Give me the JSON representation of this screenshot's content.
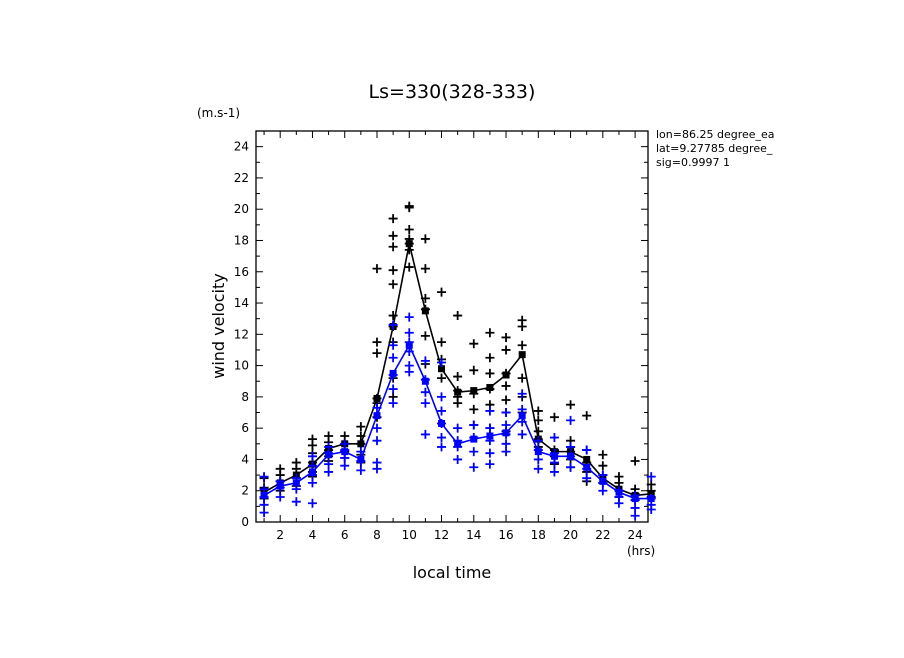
{
  "chart_data": {
    "type": "scatter",
    "title": "Ls=330(328-333)",
    "xlabel": "local time",
    "x_unit": "(hrs)",
    "ylabel": "wind velocity",
    "y_unit": "(m.s-1)",
    "xlim": [
      0.5,
      24.8
    ],
    "ylim": [
      0,
      25
    ],
    "xticks": [
      2,
      4,
      6,
      8,
      10,
      12,
      14,
      16,
      18,
      20,
      22,
      24
    ],
    "yticks": [
      0,
      2,
      4,
      6,
      8,
      10,
      12,
      14,
      16,
      18,
      20,
      22,
      24
    ],
    "legend": "top-right",
    "annotations": [
      "lon=86.25 degree_ea",
      "lat=9.27785 degree_",
      "sig=0.9997 1"
    ],
    "series": [
      {
        "color": "#000000",
        "mean": {
          "x": [
            1,
            2,
            3,
            4,
            5,
            6,
            7,
            8,
            9,
            10,
            11,
            12,
            13,
            14,
            15,
            16,
            17,
            18,
            19,
            20,
            21,
            22,
            23,
            24,
            25
          ],
          "y": [
            1.9,
            2.5,
            3.0,
            3.7,
            4.7,
            5.0,
            5.0,
            7.9,
            12.5,
            17.8,
            13.5,
            9.8,
            8.3,
            8.4,
            8.6,
            9.4,
            10.7,
            5.3,
            4.5,
            4.5,
            4.0,
            2.8,
            2.1,
            1.7,
            1.8
          ]
        },
        "samples": [
          [
            1,
            1.5
          ],
          [
            1,
            2.2
          ],
          [
            1,
            2.8
          ],
          [
            2,
            2.0
          ],
          [
            2,
            2.6
          ],
          [
            2,
            3.0
          ],
          [
            2,
            3.4
          ],
          [
            3,
            2.8
          ],
          [
            3,
            3.4
          ],
          [
            3,
            3.8
          ],
          [
            3,
            2.3
          ],
          [
            4,
            3.2
          ],
          [
            4,
            3.8
          ],
          [
            4,
            4.4
          ],
          [
            4,
            4.9
          ],
          [
            4,
            5.3
          ],
          [
            4,
            2.9
          ],
          [
            5,
            4.2
          ],
          [
            5,
            4.6
          ],
          [
            5,
            5.1
          ],
          [
            5,
            5.5
          ],
          [
            5,
            3.9
          ],
          [
            6,
            4.5
          ],
          [
            6,
            5.0
          ],
          [
            6,
            5.5
          ],
          [
            6,
            4.1
          ],
          [
            7,
            4.3
          ],
          [
            7,
            5.0
          ],
          [
            7,
            5.5
          ],
          [
            7,
            6.1
          ],
          [
            7,
            3.8
          ],
          [
            8,
            6.7
          ],
          [
            8,
            7.9
          ],
          [
            8,
            10.8
          ],
          [
            8,
            11.5
          ],
          [
            8,
            16.2
          ],
          [
            8,
            7.6
          ],
          [
            9,
            8.0
          ],
          [
            9,
            9.2
          ],
          [
            9,
            11.5
          ],
          [
            9,
            12.5
          ],
          [
            9,
            13.2
          ],
          [
            9,
            15.2
          ],
          [
            9,
            16.1
          ],
          [
            9,
            17.6
          ],
          [
            9,
            18.3
          ],
          [
            9,
            19.4
          ],
          [
            10,
            16.3
          ],
          [
            10,
            17.4
          ],
          [
            10,
            17.8
          ],
          [
            10,
            18.1
          ],
          [
            10,
            18.7
          ],
          [
            10,
            20.1
          ],
          [
            10,
            20.2
          ],
          [
            11,
            10.1
          ],
          [
            11,
            11.9
          ],
          [
            11,
            13.6
          ],
          [
            11,
            14.3
          ],
          [
            11,
            16.2
          ],
          [
            11,
            18.1
          ],
          [
            12,
            9.2
          ],
          [
            12,
            10.4
          ],
          [
            12,
            11.5
          ],
          [
            12,
            14.7
          ],
          [
            13,
            7.6
          ],
          [
            13,
            8.0
          ],
          [
            13,
            8.4
          ],
          [
            13,
            9.3
          ],
          [
            13,
            13.2
          ],
          [
            14,
            6.2
          ],
          [
            14,
            7.2
          ],
          [
            14,
            8.2
          ],
          [
            14,
            9.7
          ],
          [
            14,
            11.4
          ],
          [
            15,
            6.0
          ],
          [
            15,
            7.5
          ],
          [
            15,
            8.5
          ],
          [
            15,
            9.5
          ],
          [
            15,
            10.5
          ],
          [
            15,
            12.1
          ],
          [
            16,
            5.8
          ],
          [
            16,
            7.0
          ],
          [
            16,
            7.8
          ],
          [
            16,
            8.7
          ],
          [
            16,
            9.5
          ],
          [
            16,
            11.0
          ],
          [
            16,
            11.8
          ],
          [
            17,
            7.0
          ],
          [
            17,
            8.0
          ],
          [
            17,
            9.2
          ],
          [
            17,
            11.3
          ],
          [
            17,
            12.5
          ],
          [
            17,
            12.9
          ],
          [
            18,
            4.8
          ],
          [
            18,
            5.3
          ],
          [
            18,
            5.8
          ],
          [
            18,
            6.5
          ],
          [
            18,
            7.1
          ],
          [
            19,
            3.7
          ],
          [
            19,
            4.2
          ],
          [
            19,
            4.6
          ],
          [
            19,
            6.7
          ],
          [
            20,
            4.0
          ],
          [
            20,
            4.5
          ],
          [
            20,
            4.8
          ],
          [
            20,
            5.2
          ],
          [
            20,
            7.5
          ],
          [
            20,
            3.5
          ],
          [
            21,
            2.6
          ],
          [
            21,
            3.2
          ],
          [
            21,
            3.8
          ],
          [
            21,
            4.6
          ],
          [
            21,
            6.8
          ],
          [
            22,
            2.5
          ],
          [
            22,
            3.0
          ],
          [
            22,
            3.6
          ],
          [
            22,
            4.3
          ],
          [
            23,
            1.6
          ],
          [
            23,
            2.0
          ],
          [
            23,
            2.5
          ],
          [
            23,
            2.9
          ],
          [
            24,
            1.4
          ],
          [
            24,
            1.8
          ],
          [
            24,
            2.1
          ],
          [
            24,
            3.9
          ],
          [
            25,
            1.6
          ],
          [
            25,
            2.0
          ],
          [
            25,
            2.4
          ]
        ]
      },
      {
        "color": "#0000ff",
        "mean": {
          "x": [
            1,
            2,
            3,
            4,
            5,
            6,
            7,
            8,
            9,
            10,
            11,
            12,
            13,
            14,
            15,
            16,
            17,
            18,
            19,
            20,
            21,
            22,
            23,
            24,
            25
          ],
          "y": [
            1.7,
            2.3,
            2.5,
            3.2,
            4.3,
            4.5,
            4.0,
            6.8,
            9.5,
            11.3,
            9.0,
            6.3,
            5.0,
            5.3,
            5.5,
            5.7,
            6.8,
            4.5,
            4.2,
            4.2,
            3.5,
            2.6,
            1.9,
            1.5,
            1.5
          ]
        },
        "samples": [
          [
            1,
            0.6
          ],
          [
            1,
            1.1
          ],
          [
            1,
            1.6
          ],
          [
            1,
            2.1
          ],
          [
            1,
            2.9
          ],
          [
            2,
            1.6
          ],
          [
            2,
            2.2
          ],
          [
            2,
            2.6
          ],
          [
            3,
            1.3
          ],
          [
            3,
            2.1
          ],
          [
            3,
            2.8
          ],
          [
            4,
            1.2
          ],
          [
            4,
            2.5
          ],
          [
            4,
            3.0
          ],
          [
            4,
            3.6
          ],
          [
            4,
            4.2
          ],
          [
            5,
            3.2
          ],
          [
            5,
            3.7
          ],
          [
            5,
            4.4
          ],
          [
            5,
            4.8
          ],
          [
            6,
            3.6
          ],
          [
            6,
            4.1
          ],
          [
            6,
            4.6
          ],
          [
            6,
            5.0
          ],
          [
            7,
            3.3
          ],
          [
            7,
            3.9
          ],
          [
            7,
            4.5
          ],
          [
            8,
            3.4
          ],
          [
            8,
            3.8
          ],
          [
            8,
            5.2
          ],
          [
            8,
            6.0
          ],
          [
            8,
            7.3
          ],
          [
            9,
            7.6
          ],
          [
            9,
            8.5
          ],
          [
            9,
            9.4
          ],
          [
            9,
            10.5
          ],
          [
            9,
            11.3
          ],
          [
            9,
            12.6
          ],
          [
            10,
            9.6
          ],
          [
            10,
            10.0
          ],
          [
            10,
            10.9
          ],
          [
            10,
            11.5
          ],
          [
            10,
            12.1
          ],
          [
            10,
            13.1
          ],
          [
            11,
            5.6
          ],
          [
            11,
            7.6
          ],
          [
            11,
            8.3
          ],
          [
            11,
            9.1
          ],
          [
            11,
            10.3
          ],
          [
            12,
            4.8
          ],
          [
            12,
            5.4
          ],
          [
            12,
            6.3
          ],
          [
            12,
            7.1
          ],
          [
            12,
            8.0
          ],
          [
            12,
            10.2
          ],
          [
            13,
            4.0
          ],
          [
            13,
            4.8
          ],
          [
            13,
            5.2
          ],
          [
            13,
            6.0
          ],
          [
            14,
            3.5
          ],
          [
            14,
            4.5
          ],
          [
            14,
            5.4
          ],
          [
            14,
            6.2
          ],
          [
            15,
            3.7
          ],
          [
            15,
            4.4
          ],
          [
            15,
            5.2
          ],
          [
            15,
            6.0
          ],
          [
            15,
            7.1
          ],
          [
            16,
            4.5
          ],
          [
            16,
            5.0
          ],
          [
            16,
            5.6
          ],
          [
            16,
            6.2
          ],
          [
            16,
            7.0
          ],
          [
            17,
            5.6
          ],
          [
            17,
            6.4
          ],
          [
            17,
            7.2
          ],
          [
            17,
            8.2
          ],
          [
            18,
            3.4
          ],
          [
            18,
            4.0
          ],
          [
            18,
            4.6
          ],
          [
            18,
            5.2
          ],
          [
            19,
            3.2
          ],
          [
            19,
            3.8
          ],
          [
            19,
            4.4
          ],
          [
            19,
            5.4
          ],
          [
            20,
            3.5
          ],
          [
            20,
            4.2
          ],
          [
            20,
            4.8
          ],
          [
            20,
            6.5
          ],
          [
            21,
            2.8
          ],
          [
            21,
            3.4
          ],
          [
            21,
            4.6
          ],
          [
            22,
            2.0
          ],
          [
            22,
            2.5
          ],
          [
            22,
            3.0
          ],
          [
            23,
            1.2
          ],
          [
            23,
            1.6
          ],
          [
            23,
            2.0
          ],
          [
            24,
            0.4
          ],
          [
            24,
            0.9
          ],
          [
            24,
            1.4
          ],
          [
            24,
            1.7
          ],
          [
            25,
            0.8
          ],
          [
            25,
            1.1
          ],
          [
            25,
            1.5
          ],
          [
            25,
            2.9
          ]
        ]
      }
    ]
  }
}
